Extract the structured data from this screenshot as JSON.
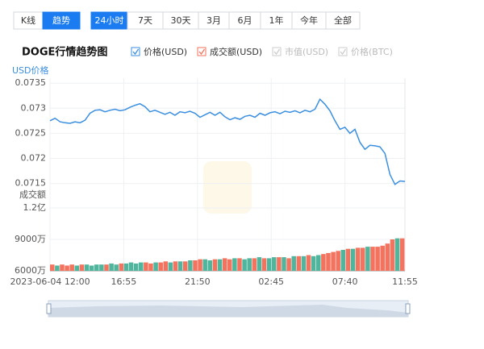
{
  "tabs": [
    "K线",
    "趋势"
  ],
  "active_tab": 1,
  "ranges": [
    "24小时",
    "7天",
    "30天",
    "3月",
    "6月",
    "1年",
    "今年",
    "全部"
  ],
  "active_range": 0,
  "legend_disabled": [
    "市值(USD)",
    "价格(BTC)"
  ],
  "chart_data": [
    {
      "type": "line",
      "title": "DOGE行情趋势图",
      "y_label": "USD价格",
      "series": [
        {
          "name": "价格(USD)",
          "color": "#3b8fe0",
          "values": [
            0.07275,
            0.0728,
            0.07273,
            0.07271,
            0.0727,
            0.07273,
            0.07271,
            0.07276,
            0.0729,
            0.07296,
            0.07297,
            0.07293,
            0.07296,
            0.07298,
            0.07295,
            0.07297,
            0.07302,
            0.07306,
            0.07309,
            0.07303,
            0.07293,
            0.07296,
            0.07292,
            0.07288,
            0.07292,
            0.07286,
            0.07293,
            0.07291,
            0.07294,
            0.0729,
            0.07282,
            0.07287,
            0.07292,
            0.07286,
            0.07292,
            0.07283,
            0.07277,
            0.07281,
            0.07278,
            0.07284,
            0.07286,
            0.07282,
            0.0729,
            0.07286,
            0.07291,
            0.07293,
            0.07289,
            0.07294,
            0.07292,
            0.07295,
            0.07291,
            0.07296,
            0.07293,
            0.07298,
            0.07318,
            0.07308,
            0.07295,
            0.07275,
            0.07258,
            0.07262,
            0.0725,
            0.07258,
            0.07232,
            0.07218,
            0.07226,
            0.07225,
            0.07223,
            0.0721,
            0.07168,
            0.07148,
            0.07155,
            0.07154
          ]
        }
      ],
      "ylim": [
        0.0713,
        0.0736
      ],
      "yticks": [
        0.0735,
        0.073,
        0.0725,
        0.072,
        0.0715
      ],
      "grid": true
    },
    {
      "type": "bar",
      "y_label": "成交额",
      "series": [
        {
          "name": "成交额(USD)",
          "color": "#f4735f",
          "up_color": "#4fb59c",
          "values": [
            66000000,
            65000000,
            66000000,
            65000000,
            66000000,
            65000000,
            66000000,
            66000000,
            65000000,
            66000000,
            66000000,
            66000000,
            67000000,
            66000000,
            67000000,
            67000000,
            68000000,
            67000000,
            68000000,
            68000000,
            67000000,
            68000000,
            68000000,
            69000000,
            68000000,
            69000000,
            69000000,
            69000000,
            70000000,
            70000000,
            71000000,
            71000000,
            70000000,
            71000000,
            71000000,
            72000000,
            71000000,
            72000000,
            72000000,
            71000000,
            72000000,
            72000000,
            73000000,
            72000000,
            72000000,
            73000000,
            73000000,
            73000000,
            72000000,
            74000000,
            74000000,
            74000000,
            75000000,
            74000000,
            75000000,
            76000000,
            77000000,
            78000000,
            79000000,
            80000000,
            81000000,
            81000000,
            82000000,
            82000000,
            83000000,
            83000000,
            83000000,
            84000000,
            86000000,
            90000000,
            91000000,
            91000000
          ]
        }
      ],
      "ylim": [
        60000000,
        120000000
      ],
      "yticks": [
        {
          "value": 120000000,
          "label": "1.2亿"
        },
        {
          "value": 90000000,
          "label": "9000万"
        },
        {
          "value": 60000000,
          "label": "6000万"
        }
      ],
      "xlim": [
        0,
        71
      ],
      "xticks": [
        {
          "value": 0,
          "label": "2023-06-04 12:00"
        },
        {
          "value": 14.75,
          "label": "16:55"
        },
        {
          "value": 29.5,
          "label": "21:50"
        },
        {
          "value": 44.25,
          "label": "02:45"
        },
        {
          "value": 59,
          "label": "07:40"
        },
        {
          "value": 71,
          "label": "11:55"
        }
      ]
    }
  ]
}
